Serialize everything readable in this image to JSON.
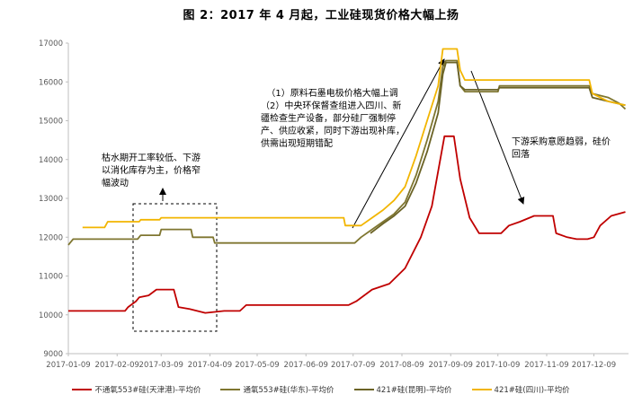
{
  "title": "图 2：2017 年 4 月起，工业硅现货价格大幅上扬",
  "annotations": {
    "note_left": "枯水期开工率较低、下游以消化库存为主，价格窄幅波动",
    "note_middle": "（1）原料石墨电极价格大幅上调\n（2）中央环保督查组进入四川、新疆检查生产设备，部分硅厂强制停产、供应收紧，同时下游出现补库，供需出现短期错配",
    "note_right": "下游采购意愿趋弱，硅价回落"
  },
  "chart_data": {
    "type": "line",
    "ylim": [
      9000,
      17000
    ],
    "yticks": [
      "9000",
      "10000",
      "11000",
      "12000",
      "13000",
      "14000",
      "15000",
      "16000",
      "17000"
    ],
    "xlim": [
      "2017-01-09",
      "2017-12-31"
    ],
    "xticks": [
      "2017-01-09",
      "2017-02-09",
      "2017-03-09",
      "2017-04-09",
      "2017-05-09",
      "2017-06-09",
      "2017-07-09",
      "2017-08-09",
      "2017-09-09",
      "2017-10-09",
      "2017-11-09",
      "2017-12-09"
    ],
    "grid": false,
    "legend_position": "bottom",
    "series": [
      {
        "name": "不通氧553#硅(天津港)-平均价",
        "color": "#c00000",
        "points": [
          [
            "2017-01-09",
            10100
          ],
          [
            "2017-02-14",
            10100
          ],
          [
            "2017-02-16",
            10200
          ],
          [
            "2017-02-21",
            10350
          ],
          [
            "2017-02-23",
            10450
          ],
          [
            "2017-03-01",
            10500
          ],
          [
            "2017-03-06",
            10650
          ],
          [
            "2017-03-17",
            10650
          ],
          [
            "2017-03-20",
            10200
          ],
          [
            "2017-03-27",
            10150
          ],
          [
            "2017-04-06",
            10050
          ],
          [
            "2017-04-18",
            10100
          ],
          [
            "2017-04-28",
            10100
          ],
          [
            "2017-05-02",
            10250
          ],
          [
            "2017-07-06",
            10250
          ],
          [
            "2017-07-11",
            10350
          ],
          [
            "2017-07-21",
            10650
          ],
          [
            "2017-08-01",
            10800
          ],
          [
            "2017-08-11",
            11200
          ],
          [
            "2017-08-21",
            12000
          ],
          [
            "2017-08-28",
            12800
          ],
          [
            "2017-09-01",
            13700
          ],
          [
            "2017-09-05",
            14600
          ],
          [
            "2017-09-11",
            14600
          ],
          [
            "2017-09-15",
            13500
          ],
          [
            "2017-09-21",
            12500
          ],
          [
            "2017-09-27",
            12100
          ],
          [
            "2017-10-11",
            12100
          ],
          [
            "2017-10-16",
            12300
          ],
          [
            "2017-10-23",
            12400
          ],
          [
            "2017-11-01",
            12550
          ],
          [
            "2017-11-13",
            12550
          ],
          [
            "2017-11-15",
            12100
          ],
          [
            "2017-11-22",
            12000
          ],
          [
            "2017-11-28",
            11950
          ],
          [
            "2017-12-05",
            11950
          ],
          [
            "2017-12-09",
            12000
          ],
          [
            "2017-12-13",
            12300
          ],
          [
            "2017-12-20",
            12550
          ],
          [
            "2017-12-29",
            12650
          ]
        ]
      },
      {
        "name": "通氧553#硅(华东)-平均价",
        "color": "#7f7630",
        "points": [
          [
            "2017-01-09",
            11800
          ],
          [
            "2017-01-12",
            11950
          ],
          [
            "2017-02-22",
            11950
          ],
          [
            "2017-02-24",
            12050
          ],
          [
            "2017-03-08",
            12050
          ],
          [
            "2017-03-09",
            12200
          ],
          [
            "2017-03-28",
            12200
          ],
          [
            "2017-03-29",
            12000
          ],
          [
            "2017-04-11",
            12000
          ],
          [
            "2017-04-12",
            11850
          ],
          [
            "2017-07-10",
            11850
          ],
          [
            "2017-07-14",
            12000
          ],
          [
            "2017-07-21",
            12200
          ],
          [
            "2017-07-28",
            12400
          ],
          [
            "2017-08-04",
            12600
          ],
          [
            "2017-08-11",
            12900
          ],
          [
            "2017-08-18",
            13600
          ],
          [
            "2017-08-25",
            14500
          ],
          [
            "2017-09-01",
            15500
          ],
          [
            "2017-09-04",
            16400
          ],
          [
            "2017-09-06",
            16550
          ],
          [
            "2017-09-13",
            16550
          ],
          [
            "2017-09-15",
            15900
          ],
          [
            "2017-09-18",
            15750
          ],
          [
            "2017-10-09",
            15750
          ],
          [
            "2017-10-10",
            15900
          ],
          [
            "2017-12-06",
            15900
          ],
          [
            "2017-12-08",
            15700
          ],
          [
            "2017-12-18",
            15600
          ],
          [
            "2017-12-25",
            15450
          ],
          [
            "2017-12-29",
            15300
          ]
        ]
      },
      {
        "name": "421#硅(昆明)-平均价",
        "color": "#6b6326",
        "points": [
          [
            "2017-07-20",
            12100
          ],
          [
            "2017-07-28",
            12350
          ],
          [
            "2017-08-04",
            12550
          ],
          [
            "2017-08-11",
            12800
          ],
          [
            "2017-08-18",
            13400
          ],
          [
            "2017-08-25",
            14200
          ],
          [
            "2017-09-01",
            15200
          ],
          [
            "2017-09-04",
            16200
          ],
          [
            "2017-09-06",
            16500
          ],
          [
            "2017-09-13",
            16500
          ],
          [
            "2017-09-15",
            15900
          ],
          [
            "2017-09-18",
            15800
          ],
          [
            "2017-10-09",
            15800
          ],
          [
            "2017-10-10",
            15850
          ],
          [
            "2017-12-06",
            15850
          ],
          [
            "2017-12-08",
            15600
          ],
          [
            "2017-12-18",
            15500
          ],
          [
            "2017-12-29",
            15400
          ]
        ]
      },
      {
        "name": "421#硅(四川)-平均价",
        "color": "#f2b500",
        "points": [
          [
            "2017-01-18",
            12250
          ],
          [
            "2017-02-01",
            12250
          ],
          [
            "2017-02-03",
            12400
          ],
          [
            "2017-02-23",
            12400
          ],
          [
            "2017-02-24",
            12450
          ],
          [
            "2017-03-08",
            12450
          ],
          [
            "2017-03-09",
            12500
          ],
          [
            "2017-07-03",
            12500
          ],
          [
            "2017-07-04",
            12300
          ],
          [
            "2017-07-14",
            12300
          ],
          [
            "2017-07-21",
            12500
          ],
          [
            "2017-07-28",
            12700
          ],
          [
            "2017-08-04",
            12950
          ],
          [
            "2017-08-11",
            13300
          ],
          [
            "2017-08-18",
            14100
          ],
          [
            "2017-08-25",
            15000
          ],
          [
            "2017-09-01",
            15900
          ],
          [
            "2017-09-04",
            16850
          ],
          [
            "2017-09-13",
            16850
          ],
          [
            "2017-09-15",
            16300
          ],
          [
            "2017-09-18",
            16050
          ],
          [
            "2017-12-06",
            16050
          ],
          [
            "2017-12-08",
            15700
          ],
          [
            "2017-12-18",
            15500
          ],
          [
            "2017-12-29",
            15400
          ]
        ]
      }
    ]
  }
}
